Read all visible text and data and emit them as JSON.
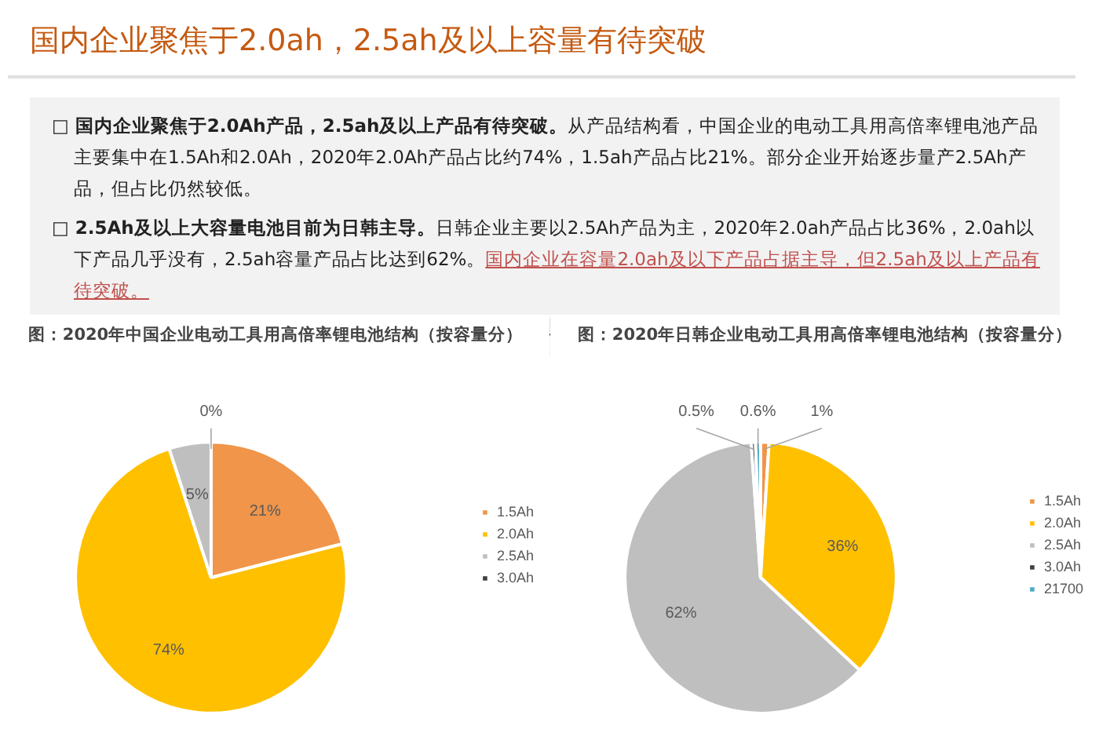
{
  "chart_data": [
    {
      "type": "other",
      "title": "国内企业聚焦于2.0ah，2.5ah及以上容量有待突破",
      "annotations": [
        "□ 国内企业聚焦于2.0Ah产品，2.5ah及以上产品有待突破。",
        "从产品结构看，中国企业的电动工具用高倍率锂电池产品主要集中在1.5Ah和2.0Ah，2020年2.0Ah产品占比约74%，1.5ah产品占比21%。部分企业开始逐步量产2.5Ah产品，但占比仍然较低。",
        "□ 2.5Ah及以上大容量电池目前为日韩主导。",
        "日韩企业主要以2.5Ah产品为主，2020年2.0ah产品占比36%，2.0ah以下产品几乎没有，2.5ah容量产品占比达到62%。",
        "国内企业在容量2.0ah及以下产品占据主导，但2.5ah及以上产品有待突破。"
      ]
    },
    {
      "type": "pie",
      "title": "图：2020年中国企业电动工具用高倍率锂电池结构（按容量分）",
      "categories": [
        "1.5Ah",
        "2.0Ah",
        "2.5Ah",
        "3.0Ah"
      ],
      "values": [
        21,
        74,
        5,
        0
      ],
      "value_labels": [
        "21%",
        "74%",
        "5%",
        "0%"
      ],
      "colors": [
        "#f0954a",
        "#ffc000",
        "#bfbfbf",
        "#404040"
      ],
      "legend": "right"
    },
    {
      "type": "pie",
      "title": "图：2020年日韩企业电动工具用高倍率锂电池结构（按容量分）",
      "categories": [
        "1.5Ah",
        "2.0Ah",
        "2.5Ah",
        "3.0Ah",
        "21700"
      ],
      "values": [
        1,
        36,
        62,
        0.5,
        0.6
      ],
      "value_labels": [
        "1%",
        "36%",
        "62%",
        "0.5%",
        "0.6%"
      ],
      "colors": [
        "#f0954a",
        "#ffc000",
        "#bfbfbf",
        "#404040",
        "#4bacc6"
      ],
      "legend": "right"
    }
  ]
}
